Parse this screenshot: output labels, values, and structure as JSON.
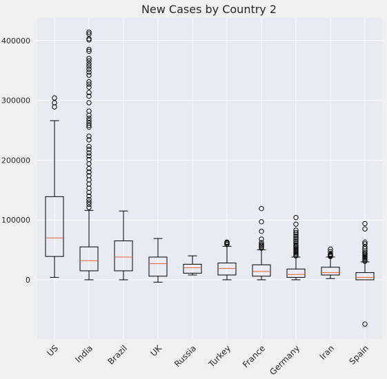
{
  "chart_data": {
    "type": "boxplot",
    "title": "New Cases by Country 2",
    "xlabel": "",
    "ylabel": "",
    "ylim": [
      -100000,
      435000
    ],
    "yticks": [
      0,
      100000,
      200000,
      300000,
      400000
    ],
    "ytick_labels": [
      "0",
      "100000",
      "200000",
      "300000",
      "400000"
    ],
    "grid": true,
    "categories": [
      "US",
      "India",
      "Brazil",
      "UK",
      "Russia",
      "Turkey",
      "France",
      "Germany",
      "Iran",
      "Spain"
    ],
    "series": [
      {
        "whisker_low": 4000,
        "q1": 39000,
        "median": 70000,
        "q3": 139000,
        "whisker_high": 266000,
        "outliers": [
          289000,
          296000,
          304000
        ]
      },
      {
        "whisker_low": 0,
        "q1": 15000,
        "median": 32000,
        "q3": 55000,
        "whisker_high": 116000,
        "outliers": [
          121000,
          126000,
          130000,
          134000,
          140000,
          146000,
          153000,
          160000,
          167000,
          174000,
          180000,
          186000,
          194000,
          201000,
          207000,
          212000,
          218000,
          223000,
          234000,
          240000,
          255000,
          258000,
          262000,
          266000,
          270000,
          275000,
          282000,
          296000,
          307000,
          313000,
          322000,
          327000,
          331000,
          342000,
          347000,
          352000,
          357000,
          361000,
          366000,
          370000,
          382000,
          385000,
          401000,
          403000,
          411000,
          414000
        ]
      },
      {
        "whisker_low": 0,
        "q1": 15000,
        "median": 38000,
        "q3": 65000,
        "whisker_high": 115000,
        "outliers": []
      },
      {
        "whisker_low": -4000,
        "q1": 6000,
        "median": 27000,
        "q3": 38000,
        "whisker_high": 69000,
        "outliers": []
      },
      {
        "whisker_low": 8000,
        "q1": 11000,
        "median": 20000,
        "q3": 26000,
        "whisker_high": 40000,
        "outliers": []
      },
      {
        "whisker_low": 0,
        "q1": 8000,
        "median": 19000,
        "q3": 28000,
        "whisker_high": 56000,
        "outliers": [
          59000,
          61000,
          62000,
          63000
        ]
      },
      {
        "whisker_low": 0,
        "q1": 6000,
        "median": 14000,
        "q3": 25000,
        "whisker_high": 50000,
        "outliers": [
          53000,
          55000,
          57000,
          59000,
          62000,
          68000,
          81000,
          97000,
          119000
        ]
      },
      {
        "whisker_low": 0,
        "q1": 4000,
        "median": 9000,
        "q3": 18000,
        "whisker_high": 38000,
        "outliers": [
          40000,
          42000,
          44000,
          46000,
          48000,
          50000,
          52000,
          54000,
          56000,
          58000,
          61000,
          64000,
          67000,
          70000,
          73000,
          76000,
          79000,
          83000,
          93000,
          104000
        ]
      },
      {
        "whisker_low": 2000,
        "q1": 8000,
        "median": 12000,
        "q3": 21000,
        "whisker_high": 38000,
        "outliers": [
          39000,
          40000,
          41000,
          42000,
          43000,
          47000,
          51000
        ]
      },
      {
        "whisker_low": 0,
        "q1": 0,
        "median": 4000,
        "q3": 12000,
        "whisker_high": 30000,
        "outliers": [
          -74000,
          31000,
          33000,
          35000,
          37000,
          39000,
          41000,
          43000,
          45000,
          48000,
          52000,
          55000,
          60000,
          63000,
          85000,
          94000
        ]
      }
    ]
  }
}
